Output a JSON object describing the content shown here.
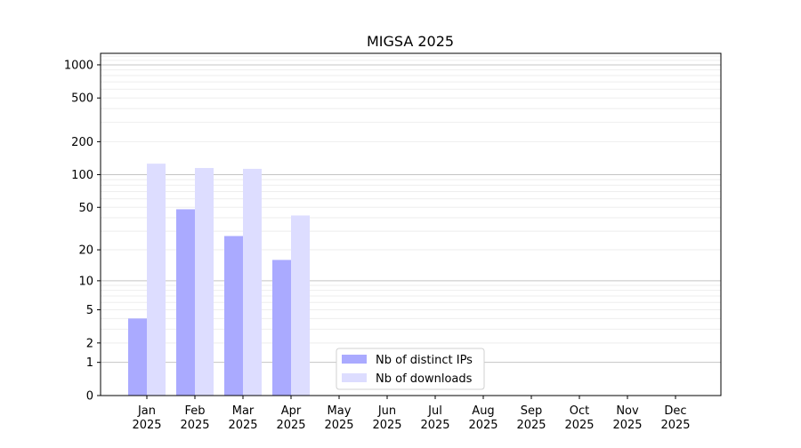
{
  "chart_data": {
    "type": "bar",
    "title": "MIGSA 2025",
    "xlabel": "",
    "ylabel": "",
    "yscale": "log(y+1)",
    "ylim": [
      0,
      1300
    ],
    "yticks": [
      0,
      1,
      2,
      5,
      10,
      20,
      50,
      100,
      200,
      500,
      1000
    ],
    "categories": [
      "Jan\n2025",
      "Feb\n2025",
      "Mar\n2025",
      "Apr\n2025",
      "May\n2025",
      "Jun\n2025",
      "Jul\n2025",
      "Aug\n2025",
      "Sep\n2025",
      "Oct\n2025",
      "Nov\n2025",
      "Dec\n2025"
    ],
    "series": [
      {
        "name": "Nb of distinct IPs",
        "color": "#aaaaff",
        "values": [
          4,
          48,
          27,
          16,
          0,
          0,
          0,
          0,
          0,
          0,
          0,
          0
        ]
      },
      {
        "name": "Nb of downloads",
        "color": "#ddddff",
        "values": [
          126,
          115,
          113,
          42,
          0,
          0,
          0,
          0,
          0,
          0,
          0,
          0
        ]
      }
    ],
    "grid": true,
    "legend": "bottom-center"
  }
}
